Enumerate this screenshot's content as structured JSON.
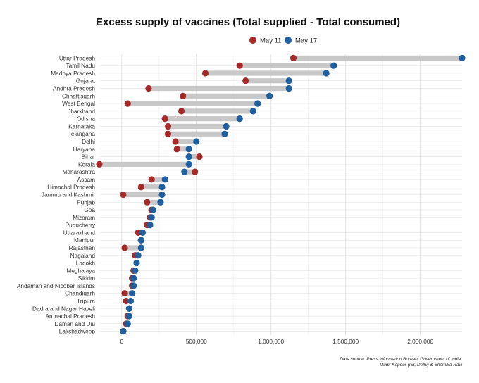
{
  "chart_data": {
    "type": "dumbbell",
    "title": "Excess supply of vaccines (Total supplied - Total consumed)",
    "xlabel": "",
    "ylabel": "",
    "xlim": [
      -150000,
      2280000
    ],
    "x_ticks": [
      0,
      500000,
      1000000,
      1500000,
      2000000
    ],
    "x_tick_labels": [
      "0",
      "500,000",
      "1,000,000",
      "1,500,000",
      "2,000,000"
    ],
    "grid": true,
    "legend_position": "top",
    "series": [
      {
        "name": "May 11",
        "color": "#a52a2a"
      },
      {
        "name": "May 17",
        "color": "#1f5f9e"
      }
    ],
    "categories": [
      "Uttar Pradesh",
      "Tamil Nadu",
      "Madhya Pradesh",
      "Gujarat",
      "Andhra Pradesh",
      "Chhattisgarh",
      "West Bengal",
      "Jharkhand",
      "Odisha",
      "Karnataka",
      "Telangana",
      "Delhi",
      "Haryana",
      "Bihar",
      "Kerala",
      "Maharashtra",
      "Assam",
      "Himachal Pradesh",
      "Jammu and Kashmir",
      "Punjab",
      "Goa",
      "Mizoram",
      "Puducherry",
      "Uttarakhand",
      "Manipur",
      "Rajasthan",
      "Nagaland",
      "Ladakh",
      "Meghalaya",
      "Sikkim",
      "Andaman and Nicobar Islands",
      "Chandigarh",
      "Tripura",
      "Dadra and Nagar Haveli",
      "Arunachal Pradesh",
      "Daman and Diu",
      "Lakshadweep"
    ],
    "may11": [
      1150000,
      790000,
      560000,
      830000,
      180000,
      410000,
      40000,
      400000,
      290000,
      310000,
      310000,
      360000,
      370000,
      520000,
      -150000,
      490000,
      200000,
      130000,
      10000,
      170000,
      200000,
      190000,
      170000,
      110000,
      130000,
      20000,
      90000,
      100000,
      80000,
      70000,
      70000,
      20000,
      30000,
      50000,
      40000,
      30000,
      10000
    ],
    "may17": [
      2280000,
      1420000,
      1370000,
      1120000,
      1120000,
      990000,
      910000,
      880000,
      790000,
      700000,
      690000,
      500000,
      450000,
      450000,
      450000,
      420000,
      290000,
      270000,
      270000,
      260000,
      210000,
      200000,
      190000,
      140000,
      130000,
      130000,
      110000,
      100000,
      90000,
      80000,
      80000,
      70000,
      60000,
      50000,
      50000,
      40000,
      10000
    ],
    "source_line1": "Data source: Press Information Bureau, Government of India.",
    "source_line2": "Mudit Kapoor (ISI, Delhi) & Shamika Ravi"
  }
}
